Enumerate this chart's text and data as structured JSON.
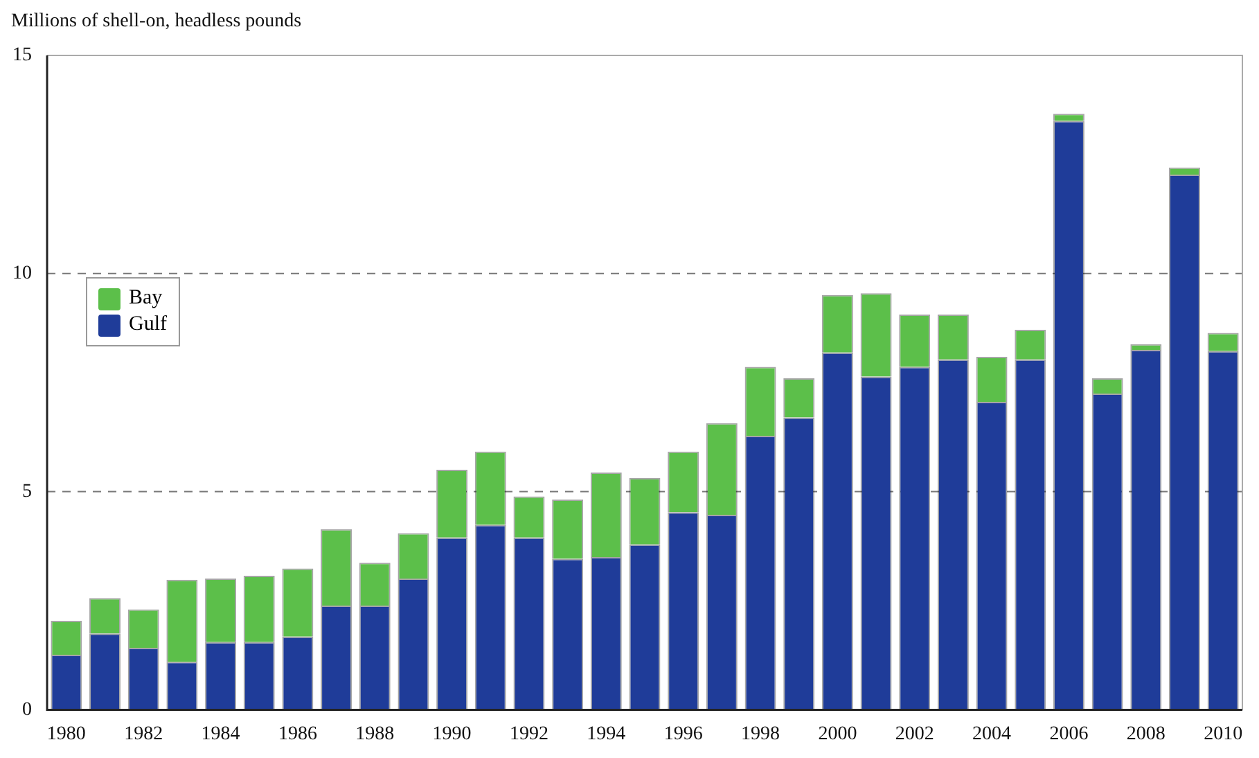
{
  "chart_data": {
    "type": "bar",
    "stacked": true,
    "ylabel": "Millions of shell-on, headless pounds",
    "categories": [
      "1980",
      null,
      "1982",
      null,
      "1984",
      null,
      "1986",
      null,
      "1988",
      null,
      "1990",
      null,
      "1992",
      null,
      "1994",
      null,
      "1996",
      null,
      "1998",
      null,
      "2000",
      null,
      "2002",
      null,
      "2004",
      null,
      "2006",
      null,
      "2008",
      null,
      "2010"
    ],
    "series": [
      {
        "name": "Gulf",
        "color": "#1f3c99",
        "values": [
          1.26,
          1.75,
          1.42,
          1.1,
          1.55,
          1.55,
          1.68,
          2.39,
          2.39,
          3.01,
          3.95,
          4.24,
          3.95,
          3.46,
          3.5,
          3.79,
          4.53,
          4.47,
          6.28,
          6.7,
          8.19,
          7.64,
          7.86,
          8.03,
          7.06,
          8.03,
          13.5,
          7.25,
          8.25,
          12.27,
          8.22
        ]
      },
      {
        "name": "Bay",
        "color": "#5cbf4a",
        "values": [
          0.78,
          0.81,
          0.88,
          1.88,
          1.46,
          1.52,
          1.56,
          1.75,
          0.98,
          1.04,
          1.55,
          1.68,
          0.94,
          1.36,
          1.94,
          1.52,
          1.39,
          2.1,
          1.58,
          0.9,
          1.32,
          1.91,
          1.2,
          1.03,
          1.03,
          0.68,
          0.16,
          0.35,
          0.13,
          0.16,
          0.42
        ]
      }
    ],
    "ylim": [
      0,
      15
    ],
    "yticks": [
      0,
      5,
      10,
      15
    ],
    "grid": "y",
    "legend": "top left"
  }
}
